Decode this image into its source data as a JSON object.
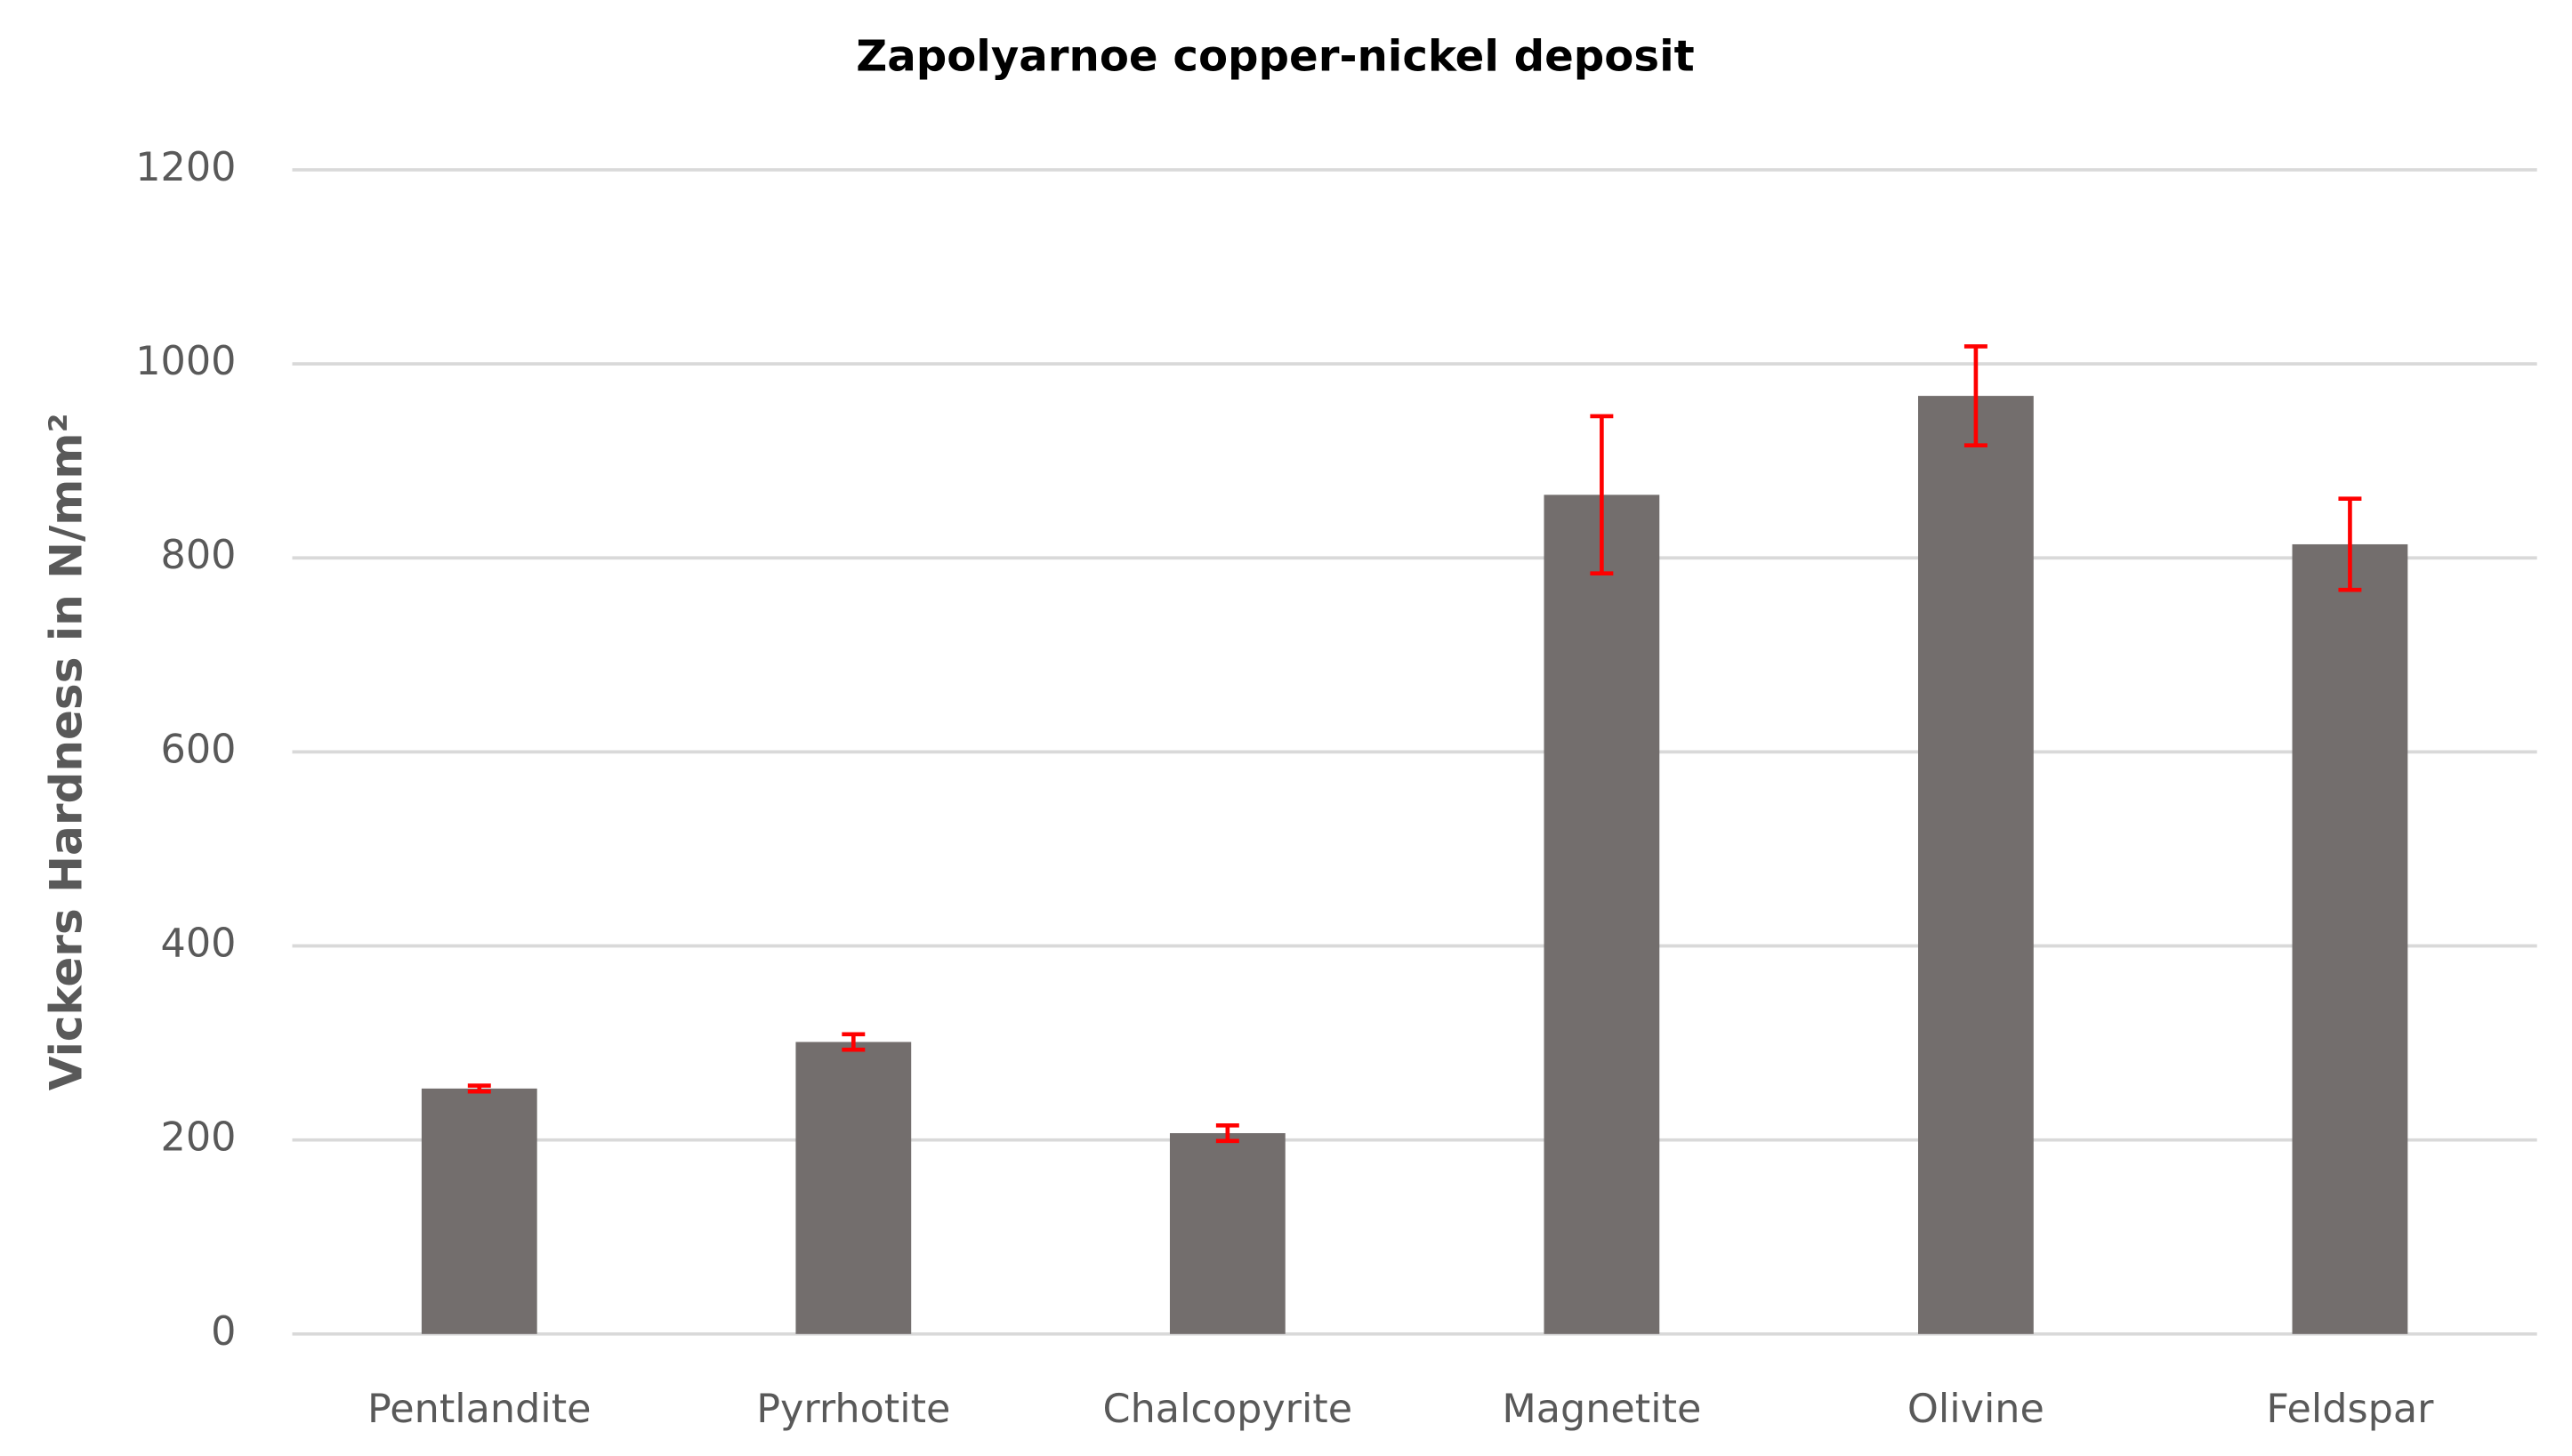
{
  "chart_data": {
    "type": "bar",
    "title": "Zapolyarnoe copper-nickel deposit",
    "y_label": "Vickers Hardness  in N/mm²",
    "categories": [
      "Pentlandite",
      "Pyrrhotite",
      "Chalcopyrite",
      "Magnetite",
      "Olivine",
      "Feldspar"
    ],
    "values": [
      253,
      301,
      207,
      865,
      967,
      814
    ],
    "errors": [
      3,
      8,
      8,
      81,
      51,
      47
    ],
    "color": "#736e6d",
    "error_color": "#ff0000",
    "ylim": [
      0,
      1200
    ],
    "yticks": [
      0,
      200,
      400,
      600,
      800,
      1000,
      1200
    ],
    "grid": true
  }
}
